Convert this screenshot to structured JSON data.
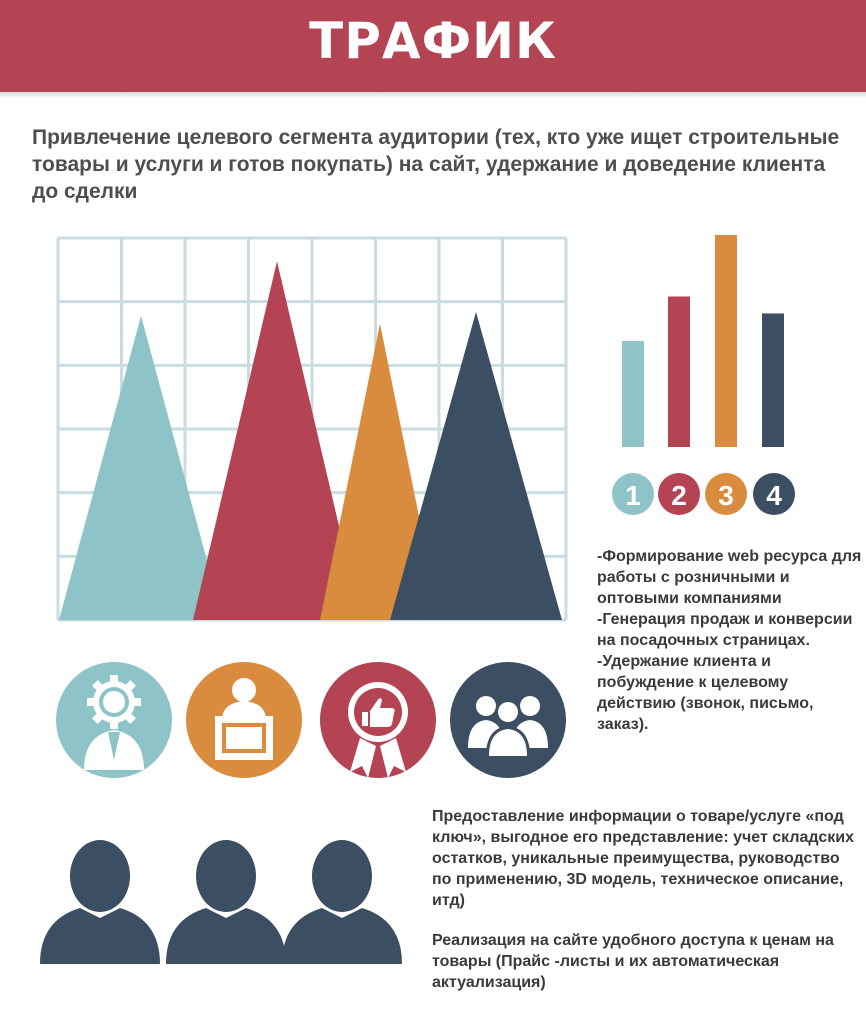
{
  "header": {
    "title": "ТРАФИК"
  },
  "intro": "Привлечение целевого сегмента аудитории (тех, кто уже ищет строительные товары и услуги и готов покупать) на сайт, удержание и доведение клиента до сделки",
  "colors": {
    "teal": "#8ec4c8",
    "red": "#b44353",
    "orange": "#d98b3e",
    "navy": "#3c4e62",
    "banner": "#b44353"
  },
  "bar_chart": {
    "values": [
      0.5,
      0.71,
      1.0,
      0.63
    ],
    "badges": [
      "1",
      "2",
      "3",
      "4"
    ]
  },
  "triangle_chart": {
    "values": [
      0.78,
      0.92,
      0.76,
      0.79
    ]
  },
  "icons": [
    "gear-person-icon",
    "speaker-podium-icon",
    "thumbs-up-award-icon",
    "team-icon"
  ],
  "services_text": "-Формирование web ресурса для работы с розничными и оптовыми компаниями\n-Генерация продаж и конверсии на посадочных страницах.\n-Удержание клиента и побуждение к целевому действию (звонок, письмо, заказ).",
  "info_text": "Предоставление информации о товаре/услуге «под ключ», выгодное его представление: учет складских остатков, уникальные преимущества, руководство по применению, 3D модель, техническое описание, итд)",
  "pricing_text": "Реализация на сайте удобного доступа к ценам на товары (Прайс -листы и их автоматическая актуализация)"
}
